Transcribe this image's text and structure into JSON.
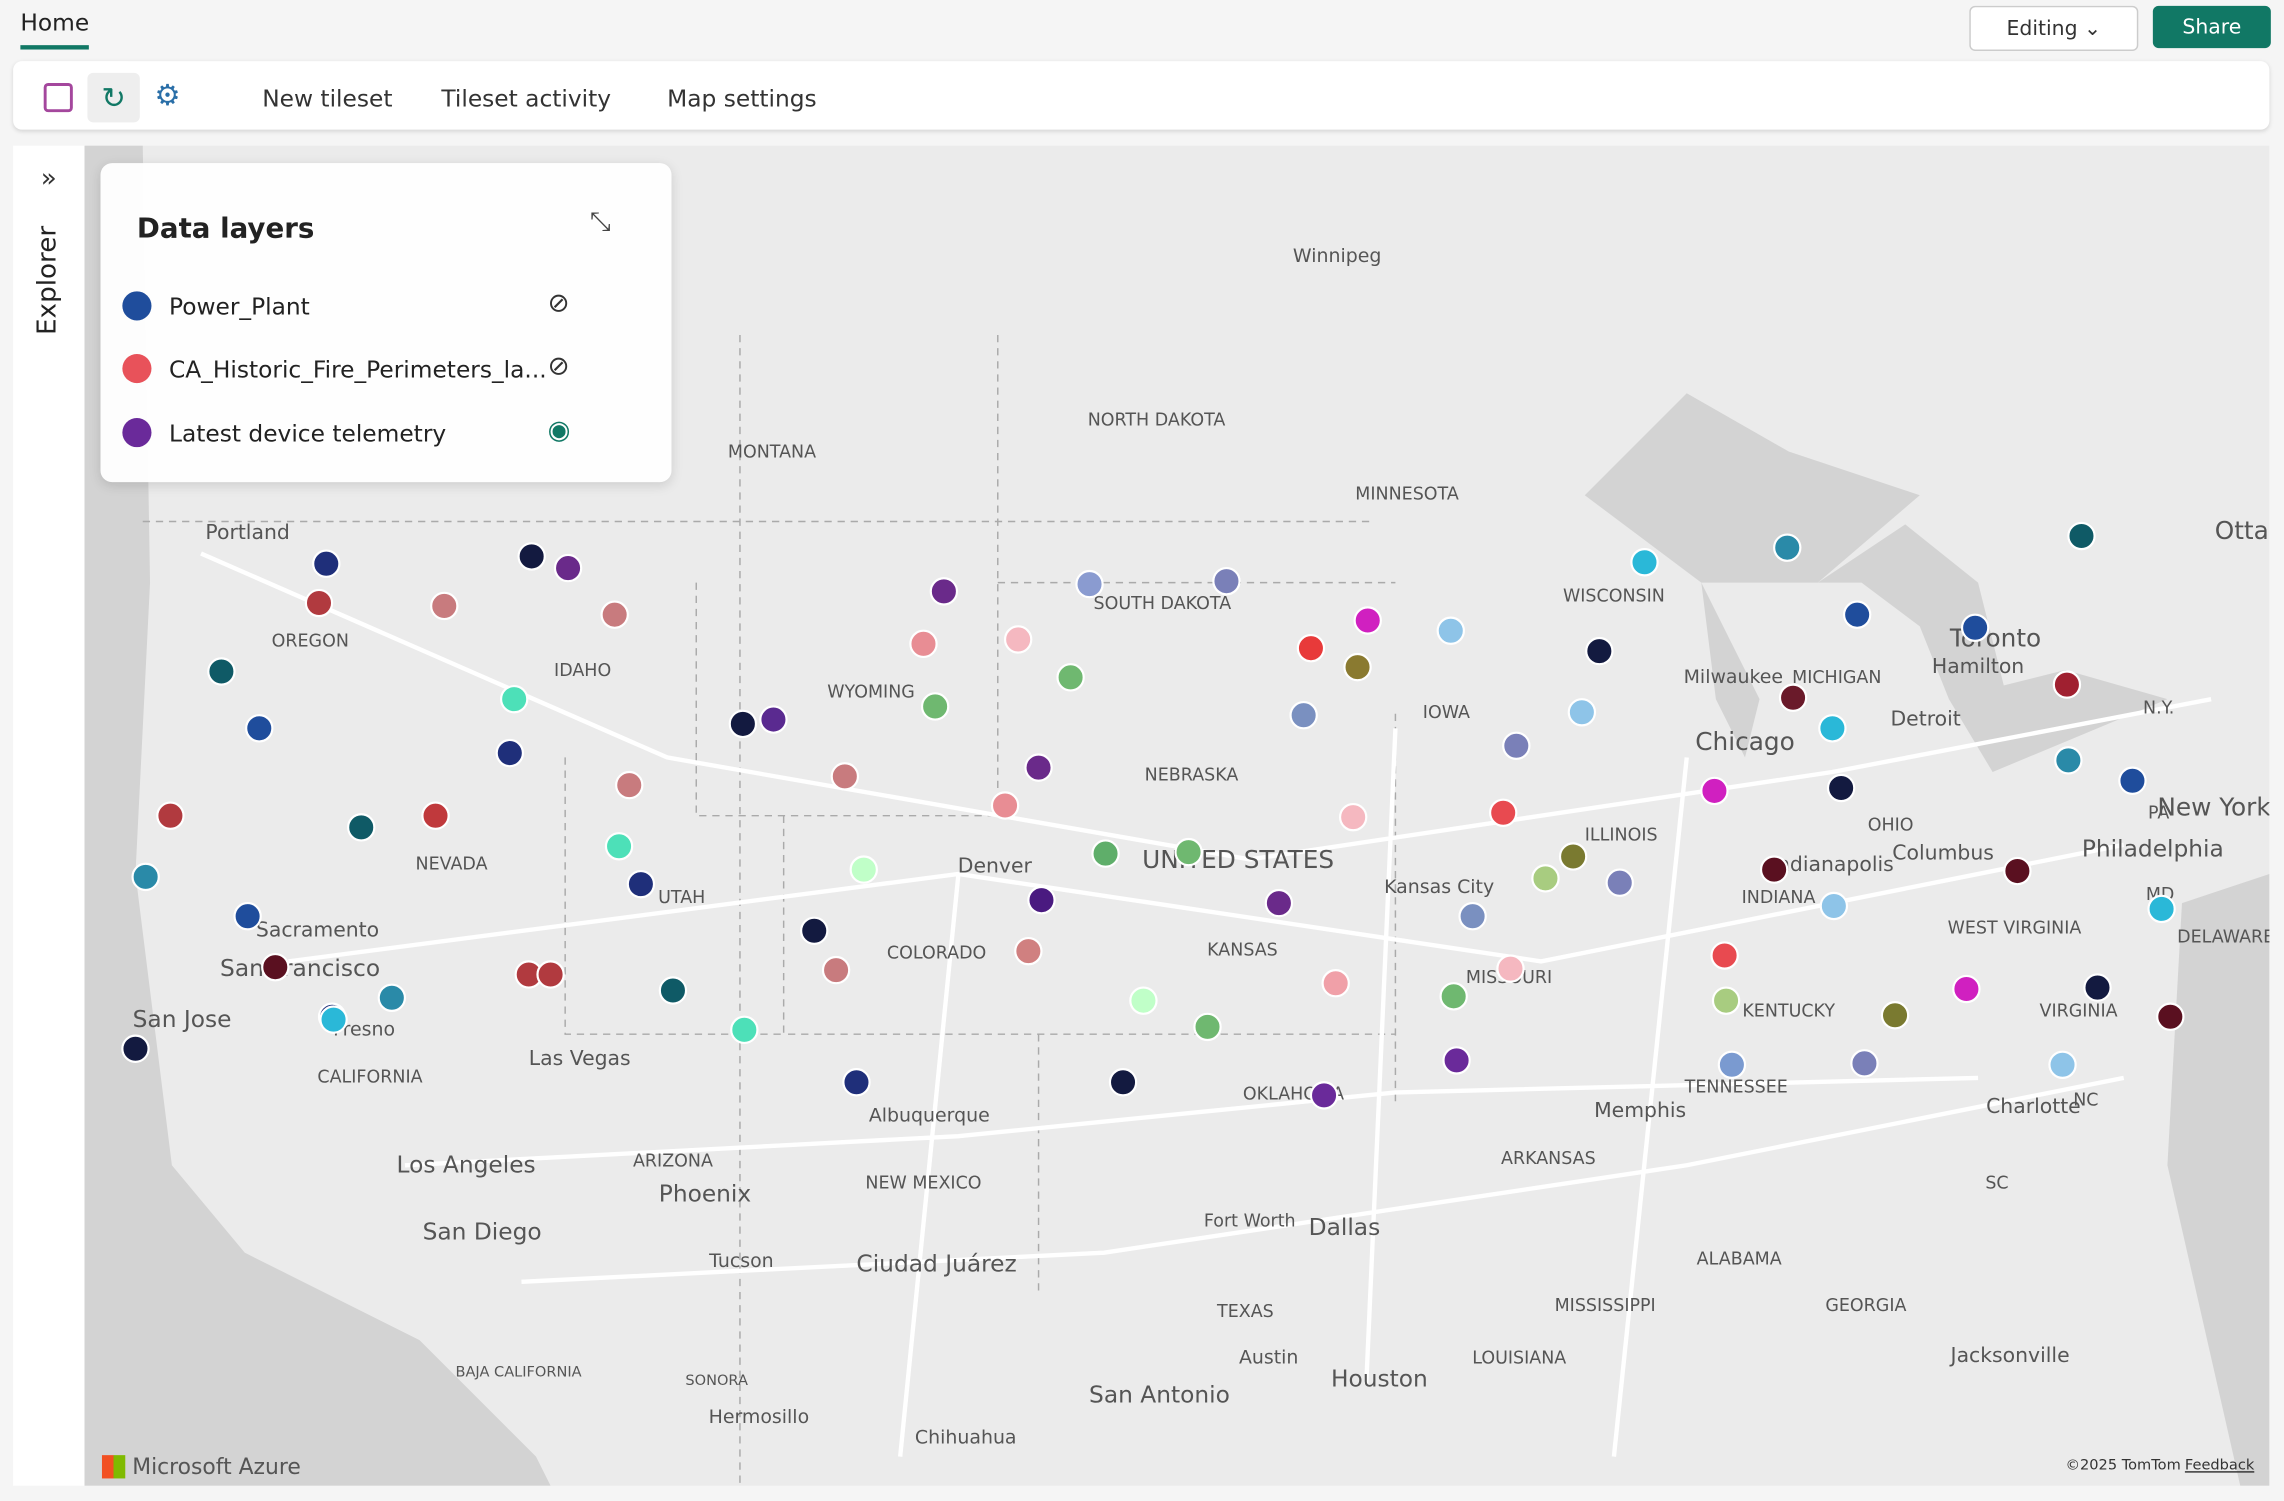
{
  "header": {
    "tab": "Home",
    "editing": "Editing",
    "share": "Share"
  },
  "toolbar": {
    "buttons": [
      "New tileset",
      "Tileset activity",
      "Map settings"
    ]
  },
  "sidebar": {
    "title": "Explorer"
  },
  "layers_panel": {
    "title": "Data layers",
    "layers": [
      "Power_Plant",
      "CA_Historic_Fire_Perimeters_la...",
      "Latest device telemetry"
    ]
  },
  "map": {
    "labels": [
      "Winnipeg",
      "NORTH DAKOTA",
      "MONTANA",
      "MINNESOTA",
      "Portland",
      "OREGON",
      "IDAHO",
      "WYOMING",
      "SOUTH DAKOTA",
      "WISCONSIN",
      "Milwaukee",
      "MICHIGAN",
      "Toronto",
      "Hamilton",
      "Detroit",
      "Chicago",
      "IOWA",
      "NEBRASKA",
      "N.Y.",
      "PA",
      "New York",
      "Philadelphia",
      "OHIO",
      "Columbus",
      "Indianapolis",
      "INDIANA",
      "ILLINOIS",
      "UNITED STATES",
      "NEVADA",
      "Denver",
      "UTAH",
      "Sacramento",
      "San Francisco",
      "COLORADO",
      "KANSAS",
      "Kansas City",
      "MISSOURI",
      "WEST VIRGINIA",
      "MD",
      "DELAWARE",
      "San Jose",
      "Fresno",
      "CALIFORNIA",
      "Las Vegas",
      "OKLAHOMA",
      "KENTUCKY",
      "VIRGINIA",
      "TENNESSEE",
      "Albuquerque",
      "Memphis",
      "Charlotte",
      "NC",
      "Los Angeles",
      "ARIZONA",
      "Phoenix",
      "NEW MEXICO",
      "ARKANSAS",
      "San Diego",
      "Fort Worth",
      "Dallas",
      "Ciudad Juárez",
      "SC",
      "ALABAMA",
      "Tucson",
      "TEXAS",
      "MISSISSIPPI",
      "GEORGIA",
      "BAJA CALIFORNIA",
      "LOUISIANA",
      "Austin",
      "Houston",
      "Jacksonville",
      "SONORA",
      "San Antonio",
      "Hermosillo",
      "Chihuahua",
      "Ottaw"
    ],
    "brand": "Microsoft Azure",
    "copyright": "©2025 TomTom",
    "feedback": "Feedback"
  }
}
